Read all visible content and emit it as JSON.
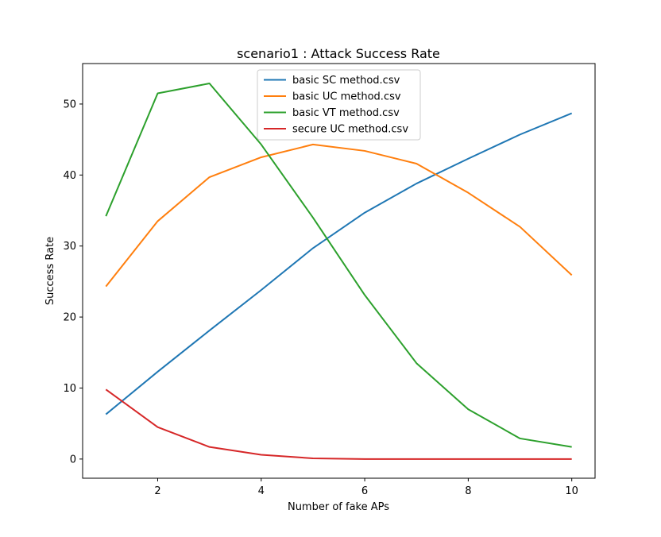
{
  "chart_data": {
    "type": "line",
    "title": "scenario1 : Attack Success Rate",
    "xlabel": "Number of fake APs",
    "ylabel": "Success Rate",
    "x": [
      1,
      2,
      3,
      4,
      5,
      6,
      7,
      8,
      9,
      10
    ],
    "xlim": [
      0.55,
      10.45
    ],
    "ylim": [
      -2.7,
      55.7
    ],
    "xticks": [
      2,
      4,
      6,
      8,
      10
    ],
    "yticks": [
      0,
      10,
      20,
      30,
      40,
      50
    ],
    "grid": false,
    "legend_position": "top-center",
    "series": [
      {
        "name": "basic SC method.csv",
        "color": "#1f77b4",
        "values": [
          6.3,
          12.3,
          18.1,
          23.8,
          29.7,
          34.7,
          38.8,
          42.3,
          45.7,
          48.7
        ]
      },
      {
        "name": "basic UC method.csv",
        "color": "#ff7f0e",
        "values": [
          24.3,
          33.5,
          39.7,
          42.5,
          44.3,
          43.4,
          41.6,
          37.5,
          32.7,
          25.9
        ]
      },
      {
        "name": "basic VT method.csv",
        "color": "#2ca02c",
        "values": [
          34.2,
          51.5,
          52.9,
          44.3,
          34.0,
          23.1,
          13.5,
          7.0,
          2.9,
          1.7
        ]
      },
      {
        "name": "secure UC method.csv",
        "color": "#d62728",
        "values": [
          9.8,
          4.5,
          1.7,
          0.6,
          0.1,
          0.0,
          0.0,
          0.0,
          0.0,
          0.0
        ]
      }
    ]
  }
}
